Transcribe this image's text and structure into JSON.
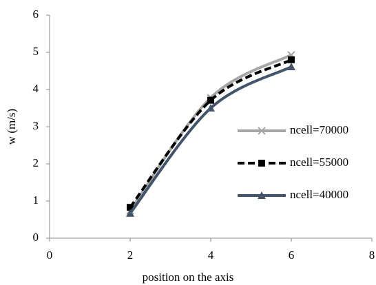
{
  "chart_data": {
    "type": "line",
    "xlabel": "position on the axis",
    "ylabel": "w (m/s)",
    "x": [
      2,
      4,
      6
    ],
    "series": [
      {
        "name": "ncell=70000",
        "color": "#a6a6a6",
        "marker": "x",
        "dashed": false,
        "values": [
          0.74,
          3.78,
          4.93
        ]
      },
      {
        "name": "ncell=55000",
        "color": "#000000",
        "marker": "square",
        "dashed": true,
        "values": [
          0.83,
          3.71,
          4.8
        ]
      },
      {
        "name": "ncell=40000",
        "color": "#44546a",
        "marker": "triangle",
        "dashed": false,
        "values": [
          0.67,
          3.5,
          4.61
        ]
      }
    ],
    "xlim": [
      0,
      8
    ],
    "xticks": [
      0,
      2,
      4,
      6,
      8
    ],
    "ylim": [
      0,
      6
    ],
    "yticks": [
      0,
      1,
      2,
      3,
      4,
      5,
      6
    ],
    "grid": false,
    "smooth": true,
    "legend": "right"
  }
}
